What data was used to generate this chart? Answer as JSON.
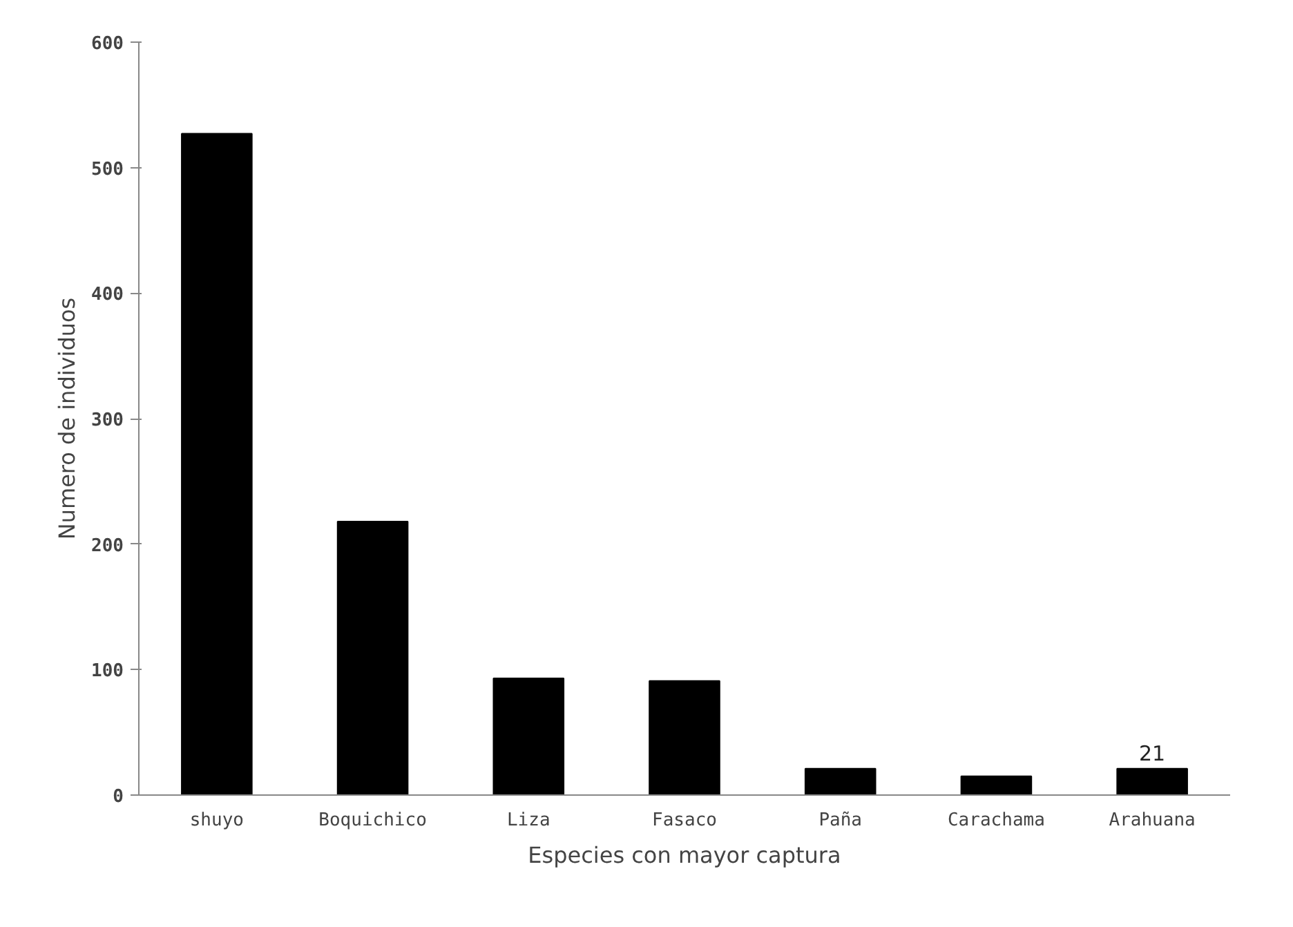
{
  "chart_data": {
    "type": "bar",
    "xlabel": "Especies con mayor captura",
    "ylabel": "Numero de individuos",
    "categories": [
      "shuyo",
      "Boquichico",
      "Liza",
      "Fasaco",
      "Paña",
      "Carachama",
      "Arahuana"
    ],
    "values": [
      527,
      218,
      93,
      91,
      21,
      15,
      21
    ],
    "value_labels": [
      null,
      null,
      null,
      null,
      null,
      null,
      "21"
    ],
    "color": "#000000",
    "ylim": [
      0,
      600
    ],
    "yticks": [
      0,
      100,
      200,
      300,
      400,
      500,
      600
    ],
    "grid": false
  }
}
